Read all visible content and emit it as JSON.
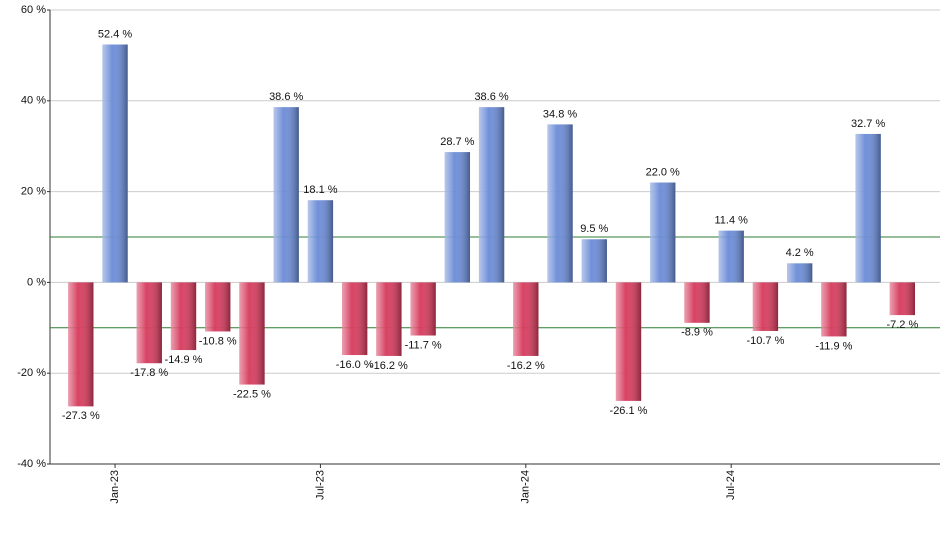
{
  "chart_data": {
    "type": "bar",
    "categories": [
      null,
      "Jan-23",
      null,
      null,
      null,
      null,
      null,
      "Jul-23",
      null,
      null,
      null,
      null,
      null,
      "Jan-24",
      null,
      null,
      null,
      null,
      null,
      "Jul-24",
      null,
      null,
      null,
      null,
      null
    ],
    "values": [
      -27.3,
      52.4,
      -17.8,
      -14.9,
      -10.8,
      -22.5,
      38.6,
      18.1,
      -16.0,
      -16.2,
      -11.7,
      28.7,
      38.6,
      -16.2,
      34.8,
      9.5,
      -26.1,
      22.0,
      -8.9,
      11.4,
      -10.7,
      4.2,
      -11.9,
      32.7,
      -7.2
    ],
    "value_labels": [
      "-27.3 %",
      "52.4 %",
      "-17.8 %",
      "-14.9 %",
      "-10.8 %",
      "-22.5 %",
      "38.6 %",
      "18.1 %",
      "-16.0 %",
      "-16.2 %",
      "-11.7 %",
      "28.7 %",
      "38.6 %",
      "-16.2 %",
      "34.8 %",
      "9.5 %",
      "-26.1 %",
      "22.0 %",
      "-8.9 %",
      "11.4 %",
      "-10.7 %",
      "4.2 %",
      "-11.9 %",
      "32.7 %",
      "-7.2 %"
    ],
    "positive_color": "#6a8bd6",
    "negative_color": "#d63a5c",
    "ylim": [
      -40,
      60
    ],
    "yticks": [
      {
        "value": -40,
        "label": "-40 %"
      },
      {
        "value": -20,
        "label": "-20 %"
      },
      {
        "value": 0,
        "label": "0 %"
      },
      {
        "value": 20,
        "label": "20 %"
      },
      {
        "value": 40,
        "label": "40 %"
      },
      {
        "value": 60,
        "label": "60 %"
      }
    ],
    "grid": true,
    "reference_lines": [
      10,
      -10
    ],
    "reference_color": "#2e7d32"
  }
}
